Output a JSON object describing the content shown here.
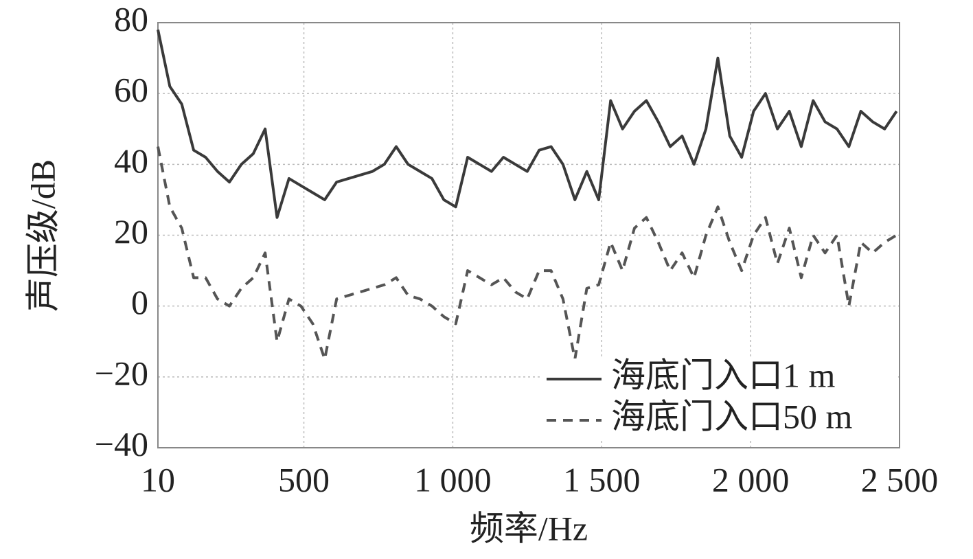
{
  "chart_data": {
    "type": "line",
    "xlabel": "频率/Hz",
    "ylabel": "声压级/dB",
    "x": [
      10,
      50,
      90,
      130,
      170,
      210,
      250,
      290,
      330,
      370,
      410,
      450,
      490,
      530,
      570,
      610,
      650,
      690,
      730,
      770,
      810,
      850,
      890,
      930,
      970,
      1010,
      1050,
      1090,
      1130,
      1170,
      1210,
      1250,
      1290,
      1330,
      1370,
      1410,
      1450,
      1490,
      1530,
      1570,
      1610,
      1650,
      1690,
      1730,
      1770,
      1810,
      1850,
      1890,
      1930,
      1970,
      2010,
      2050,
      2090,
      2130,
      2170,
      2210,
      2250,
      2290,
      2330,
      2370,
      2410,
      2450,
      2490
    ],
    "series": [
      {
        "name": "海底门入口1 m",
        "color": "#3a3a3a",
        "dash": false,
        "values": [
          78,
          62,
          57,
          44,
          42,
          38,
          35,
          40,
          43,
          50,
          25,
          36,
          34,
          32,
          30,
          35,
          36,
          37,
          38,
          40,
          45,
          40,
          38,
          36,
          30,
          28,
          42,
          40,
          38,
          42,
          40,
          38,
          44,
          45,
          40,
          30,
          38,
          30,
          58,
          50,
          55,
          58,
          52,
          45,
          48,
          40,
          50,
          70,
          48,
          42,
          55,
          60,
          50,
          55,
          45,
          58,
          52,
          50,
          45,
          55,
          52,
          50,
          55
        ]
      },
      {
        "name": "海底门入口50 m",
        "color": "#555555",
        "dash": true,
        "values": [
          45,
          28,
          22,
          8,
          8,
          2,
          0,
          5,
          8,
          15,
          -10,
          2,
          0,
          -5,
          -15,
          2,
          3,
          4,
          5,
          6,
          8,
          3,
          2,
          0,
          -3,
          -5,
          10,
          8,
          6,
          8,
          4,
          2,
          10,
          10,
          2,
          -15,
          5,
          6,
          18,
          10,
          22,
          25,
          18,
          10,
          15,
          8,
          20,
          28,
          18,
          10,
          20,
          25,
          12,
          22,
          8,
          20,
          15,
          20,
          0,
          18,
          15,
          18,
          20
        ]
      }
    ],
    "xlim": [
      10,
      2500
    ],
    "xticks": [
      10,
      500,
      {
        "value": 1000,
        "label": "1 000"
      },
      {
        "value": 1500,
        "label": "1 500"
      },
      {
        "value": 2000,
        "label": "2 000"
      },
      {
        "value": 2500,
        "label": "2 500"
      }
    ],
    "ylim": [
      -40,
      80
    ],
    "yticks": [
      {
        "value": -40,
        "label": "−40"
      },
      {
        "value": -20,
        "label": "−20"
      },
      0,
      20,
      40,
      60,
      80
    ],
    "grid": true,
    "legend": "lower right"
  }
}
